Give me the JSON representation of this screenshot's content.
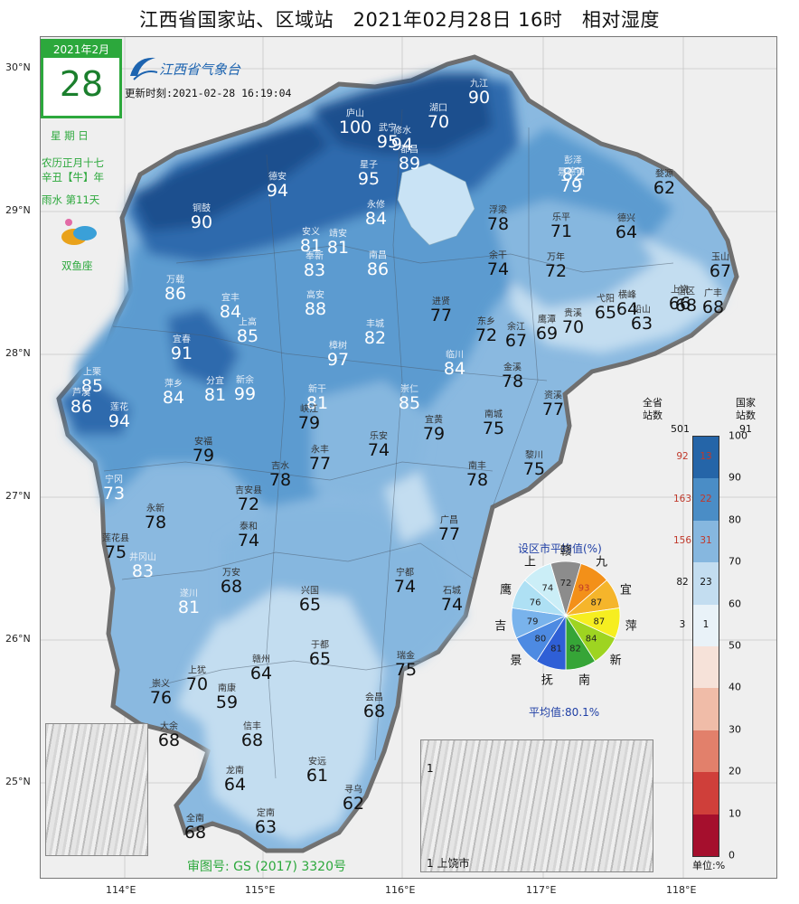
{
  "title": "江西省国家站、区域站　2021年02月28日 16时　相对湿度",
  "date_box": {
    "month": "2021年2月",
    "day": "28"
  },
  "side_info": {
    "weekday": "星 期 日",
    "lunar1": "农历正月十七",
    "lunar2": "辛丑【牛】年",
    "solar_term": "雨水 第11天",
    "zodiac": "双鱼座"
  },
  "logo": "江西省气象台",
  "update_time": "更新时刻:2021-02-28 16:19:04",
  "review_no": "审图号: GS (2017) 3320号",
  "lat_labels": [
    "30°N",
    "29°N",
    "28°N",
    "27°N",
    "26°N",
    "25°N"
  ],
  "lon_labels": [
    "114°E",
    "115°E",
    "116°E",
    "117°E",
    "118°E"
  ],
  "stations": [
    {
      "name": "九江",
      "value": "90"
    },
    {
      "name": "湖口",
      "value": "70"
    },
    {
      "name": "彭泽",
      "value": "82"
    },
    {
      "name": "婺源",
      "value": "62"
    },
    {
      "name": "景德镇",
      "value": "79"
    },
    {
      "name": "浮梁",
      "value": "78"
    },
    {
      "name": "庐山",
      "value": "100"
    },
    {
      "name": "德安",
      "value": "94"
    },
    {
      "name": "星子",
      "value": "95"
    },
    {
      "name": "都昌",
      "value": "89"
    },
    {
      "name": "修水",
      "value": "94"
    },
    {
      "name": "武宁",
      "value": "95"
    },
    {
      "name": "永修",
      "value": "84"
    },
    {
      "name": "铜鼓",
      "value": "90"
    },
    {
      "name": "乐平",
      "value": "71"
    },
    {
      "name": "德兴",
      "value": "64"
    },
    {
      "name": "万年",
      "value": "72"
    },
    {
      "name": "余干",
      "value": "74"
    },
    {
      "name": "安义",
      "value": "81"
    },
    {
      "name": "奉新",
      "value": "83"
    },
    {
      "name": "南昌",
      "value": "86"
    },
    {
      "name": "进贤",
      "value": "77"
    },
    {
      "name": "宜丰",
      "value": "84"
    },
    {
      "name": "靖安",
      "value": "81"
    },
    {
      "name": "玉山",
      "value": "67"
    },
    {
      "name": "广丰",
      "value": "68"
    },
    {
      "name": "上饶",
      "value": "66"
    },
    {
      "name": "弋阳",
      "value": "65"
    },
    {
      "name": "铅山",
      "value": "63"
    },
    {
      "name": "贵溪",
      "value": "70"
    },
    {
      "name": "鹰潭",
      "value": "69"
    },
    {
      "name": "余江",
      "value": "67"
    },
    {
      "name": "东乡",
      "value": "72"
    },
    {
      "name": "横峰",
      "value": "64"
    },
    {
      "name": "信区",
      "value": "68"
    },
    {
      "name": "万载",
      "value": "86"
    },
    {
      "name": "上高",
      "value": "85"
    },
    {
      "name": "丰城",
      "value": "82"
    },
    {
      "name": "高安",
      "value": "88"
    },
    {
      "name": "临川",
      "value": "84"
    },
    {
      "name": "金溪",
      "value": "78"
    },
    {
      "name": "资溪",
      "value": "77"
    },
    {
      "name": "宜春",
      "value": "91"
    },
    {
      "name": "樟树",
      "value": "97"
    },
    {
      "name": "萍乡",
      "value": "84"
    },
    {
      "name": "分宜",
      "value": "81"
    },
    {
      "name": "新余",
      "value": "99"
    },
    {
      "name": "上栗",
      "value": "85"
    },
    {
      "name": "芦溪",
      "value": "86"
    },
    {
      "name": "莲花",
      "value": "94"
    },
    {
      "name": "新干",
      "value": "81"
    },
    {
      "name": "崇仁",
      "value": "85"
    },
    {
      "name": "峡江",
      "value": "79"
    },
    {
      "name": "宜黄",
      "value": "79"
    },
    {
      "name": "南城",
      "value": "75"
    },
    {
      "name": "黎川",
      "value": "75"
    },
    {
      "name": "安福",
      "value": "79"
    },
    {
      "name": "永丰",
      "value": "77"
    },
    {
      "name": "乐安",
      "value": "74"
    },
    {
      "name": "南丰",
      "value": "78"
    },
    {
      "name": "吉水",
      "value": "78"
    },
    {
      "name": "吉安县",
      "value": "72"
    },
    {
      "name": "永新",
      "value": "78"
    },
    {
      "name": "广昌",
      "value": "77"
    },
    {
      "name": "宁冈",
      "value": "73"
    },
    {
      "name": "泰和",
      "value": "74"
    },
    {
      "name": "宁都",
      "value": "74"
    },
    {
      "name": "井冈山",
      "value": "83"
    },
    {
      "name": "万安",
      "value": "68"
    },
    {
      "name": "兴国",
      "value": "65"
    },
    {
      "name": "石城",
      "value": "74"
    },
    {
      "name": "遂川",
      "value": "81"
    },
    {
      "name": "莲花县",
      "value": "75"
    },
    {
      "name": "于都",
      "value": "65"
    },
    {
      "name": "瑞金",
      "value": "75"
    },
    {
      "name": "赣州",
      "value": "64"
    },
    {
      "name": "上犹",
      "value": "70"
    },
    {
      "name": "崇义",
      "value": "76"
    },
    {
      "name": "南康",
      "value": "59"
    },
    {
      "name": "会昌",
      "value": "68"
    },
    {
      "name": "大余",
      "value": "68"
    },
    {
      "name": "信丰",
      "value": "68"
    },
    {
      "name": "安远",
      "value": "61"
    },
    {
      "name": "龙南",
      "value": "64"
    },
    {
      "name": "寻乌",
      "value": "62"
    },
    {
      "name": "全南",
      "value": "68"
    },
    {
      "name": "定南",
      "value": "63"
    }
  ],
  "legend": {
    "head_all": "全省 站数",
    "head_nat": "国家 站数",
    "total_all": "501",
    "total_nat": "91",
    "ticks": [
      "100",
      "90",
      "80",
      "70",
      "60",
      "50",
      "40",
      "30",
      "20",
      "10",
      "0"
    ],
    "counts_all": [
      "92",
      "163",
      "156",
      "82",
      "3"
    ],
    "counts_nat": [
      "13",
      "22",
      "31",
      "23",
      "1"
    ],
    "unit": "单位:%",
    "colors": [
      "#15417f",
      "#2565a8",
      "#4a8dc6",
      "#86b7df",
      "#c3ddf0",
      "#e9f2f8",
      "#f6e2d9",
      "#f0bca8",
      "#e2806b",
      "#cf3f3a",
      "#a50f2d",
      "#6b0720"
    ]
  },
  "pie": {
    "title": "设区市平均值(%)",
    "avg": "平均值:80.1%",
    "slices": [
      {
        "city": "赣",
        "value": "72",
        "color": "#8c8c8c"
      },
      {
        "city": "九",
        "value": "93",
        "color": "#f39019"
      },
      {
        "city": "宜",
        "value": "87",
        "color": "#f5b52b"
      },
      {
        "city": "萍",
        "value": "87",
        "color": "#f6ee20"
      },
      {
        "city": "新",
        "value": "84",
        "color": "#9ed421"
      },
      {
        "city": "南",
        "value": "82",
        "color": "#36a537"
      },
      {
        "city": "抚",
        "value": "81",
        "color": "#2f5fd6"
      },
      {
        "city": "景",
        "value": "80",
        "color": "#4d8ae2"
      },
      {
        "city": "吉",
        "value": "79",
        "color": "#79b3ec"
      },
      {
        "city": "鹰",
        "value": "76",
        "color": "#aee0f4"
      },
      {
        "city": "上",
        "value": "74",
        "color": "#cbeef7"
      }
    ]
  },
  "insets": [
    "1 上饶市",
    "1"
  ]
}
